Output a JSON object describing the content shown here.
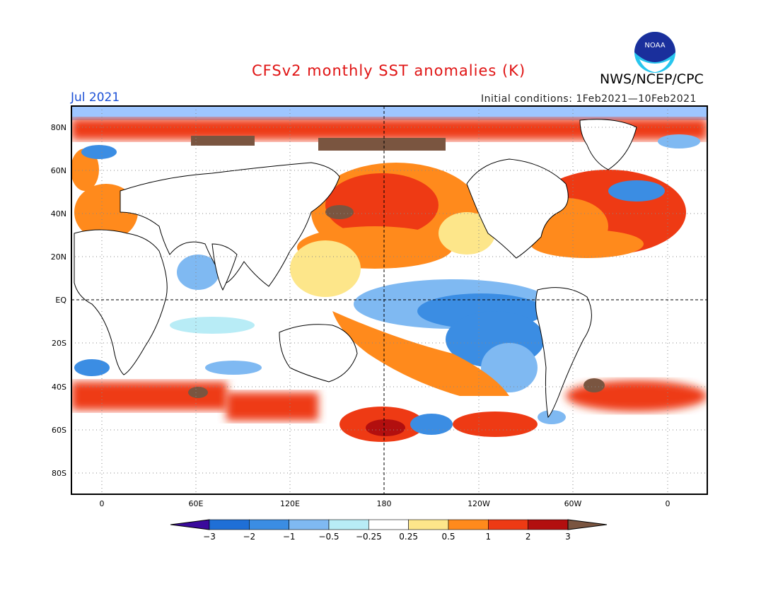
{
  "header": {
    "title": "CFSv2 monthly SST anomalies (K)",
    "org": "NWS/NCEP/CPC",
    "month": "Jul 2021",
    "initial_conditions": "Initial conditions: 1Feb2021—10Feb2021",
    "logo_text": "NOAA"
  },
  "map": {
    "lat_labels": [
      "80N",
      "60N",
      "40N",
      "20N",
      "EQ",
      "20S",
      "40S",
      "60S",
      "80S"
    ],
    "lon_labels": [
      "0",
      "60E",
      "120E",
      "180",
      "120W",
      "60W",
      "0"
    ],
    "colors": {
      "land": "#ffffff",
      "coast": "#000000",
      "ice": "#9ec6ff",
      "neutral": "#ffffff"
    }
  },
  "colorbar": {
    "labels": [
      "−3",
      "−2",
      "−1",
      "−0.5",
      "−0.25",
      "0.25",
      "0.5",
      "1",
      "2",
      "3"
    ],
    "colors": [
      "#3a0a9c",
      "#1f6fd6",
      "#3b8de3",
      "#7fb9f2",
      "#b8ecf6",
      "#ffffff",
      "#fde68a",
      "#ff8a1c",
      "#ee3a14",
      "#b20f0f",
      "#7a5540"
    ]
  }
}
